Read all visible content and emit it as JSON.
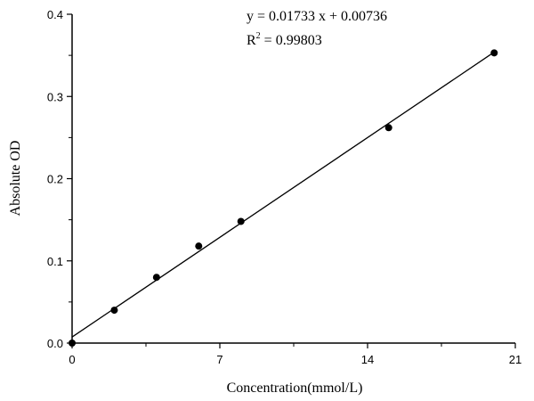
{
  "chart_data": {
    "type": "scatter",
    "title": "",
    "xlabel": "Concentration(mmol/L)",
    "ylabel": "Absolute OD",
    "xlim": [
      0,
      21
    ],
    "ylim": [
      0,
      0.4
    ],
    "xticks": [
      0,
      7,
      14,
      21
    ],
    "yticks": [
      0.0,
      0.1,
      0.2,
      0.3,
      0.4
    ],
    "xtick_labels": [
      "0",
      "7",
      "14",
      "21"
    ],
    "ytick_labels": [
      "0.0",
      "0.1",
      "0.2",
      "0.3",
      "0.4"
    ],
    "grid": false,
    "series": [
      {
        "name": "data",
        "x": [
          0,
          2,
          4,
          6,
          8,
          15,
          20
        ],
        "y": [
          0.0,
          0.04,
          0.08,
          0.118,
          0.148,
          0.262,
          0.353
        ]
      }
    ],
    "fit": {
      "slope": 0.01733,
      "intercept": 0.00736,
      "x_range": [
        0,
        20
      ]
    },
    "annotations": {
      "equation": "y = 0.01733 x + 0.00736",
      "r2_prefix": "R",
      "r2_sup": "2",
      "r2_value": " = 0.99803"
    }
  }
}
